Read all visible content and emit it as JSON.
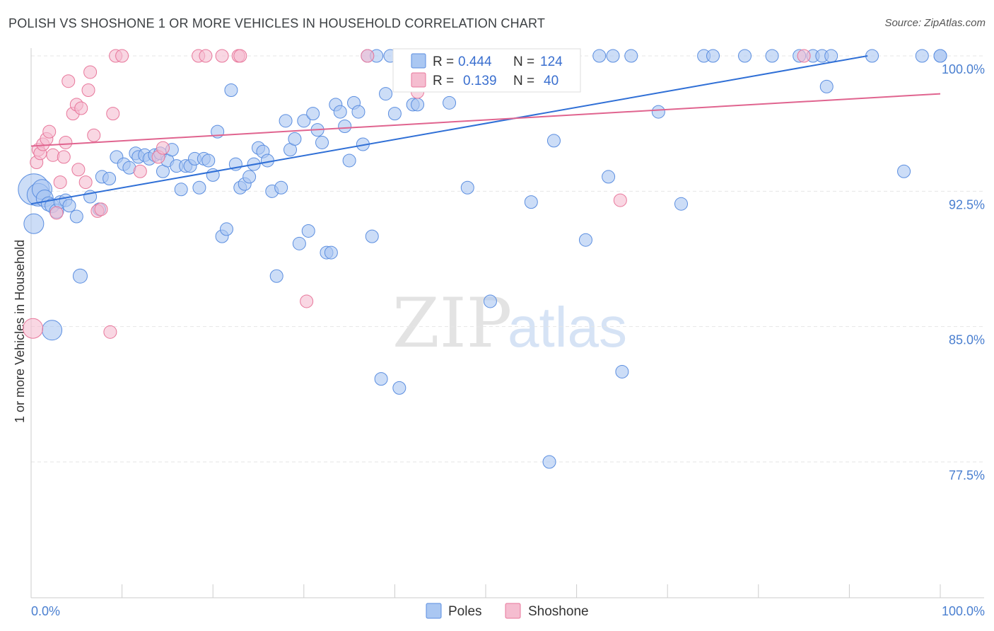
{
  "header": {
    "title": "POLISH VS SHOSHONE 1 OR MORE VEHICLES IN HOUSEHOLD CORRELATION CHART",
    "source": "Source: ZipAtlas.com"
  },
  "colors": {
    "poles": "#5b8ee0",
    "poles_fill": "#aac7f2",
    "shoshone": "#e8779b",
    "shoshone_fill": "#f5bdd0",
    "tick_label": "#4a7fd0"
  },
  "legend": {
    "poles": {
      "r_label": "R = ",
      "r_value": "0.444",
      "n_label": "N = ",
      "n_value": "124"
    },
    "shoshone": {
      "r_label": "R = ",
      "r_value": "0.139",
      "n_label": "N = ",
      "n_value": "40"
    }
  },
  "watermark": {
    "zip": "ZIP",
    "atlas": "atlas"
  },
  "chart_data": {
    "type": "scatter",
    "title": "POLISH VS SHOSHONE 1 OR MORE VEHICLES IN HOUSEHOLD CORRELATION CHART",
    "xlabel": "",
    "ylabel": "1 or more Vehicles in Household",
    "xlim": [
      0,
      100
    ],
    "ylim": [
      70.5,
      100.8
    ],
    "y_ticks": [
      77.5,
      85.0,
      92.5,
      100.0
    ],
    "y_tick_labels": [
      "77.5%",
      "85.0%",
      "92.5%",
      "100.0%"
    ],
    "x_tick_labels": [
      "0.0%",
      "100.0%"
    ],
    "series": [
      {
        "name": "Poles",
        "trend": [
          [
            0,
            91.8
          ],
          [
            92,
            100.0
          ]
        ],
        "points": [
          [
            0.3,
            92.6,
            22
          ],
          [
            0.8,
            92.3,
            16
          ],
          [
            1.2,
            92.6,
            14
          ],
          [
            1.5,
            92.1,
            12
          ],
          [
            1.9,
            91.8,
            10
          ],
          [
            2.3,
            91.7,
            10
          ],
          [
            2.8,
            91.4,
            10
          ],
          [
            3.2,
            91.9,
            9
          ],
          [
            3.8,
            92.0,
            9
          ],
          [
            4.2,
            91.7,
            9
          ],
          [
            5.0,
            91.1,
            9
          ],
          [
            0.3,
            90.7,
            14
          ],
          [
            2.3,
            84.8,
            14
          ],
          [
            5.4,
            87.8,
            10
          ],
          [
            6.5,
            92.2,
            9
          ],
          [
            7.5,
            91.5,
            9
          ],
          [
            7.8,
            93.3,
            9
          ],
          [
            8.6,
            93.2,
            9
          ],
          [
            9.4,
            94.4,
            9
          ],
          [
            10.2,
            94.0,
            9
          ],
          [
            10.8,
            93.8,
            9
          ],
          [
            11.5,
            94.6,
            9
          ],
          [
            11.8,
            94.4,
            9
          ],
          [
            12.5,
            94.5,
            9
          ],
          [
            13.0,
            94.3,
            9
          ],
          [
            13.6,
            94.5,
            9
          ],
          [
            14.2,
            94.6,
            9
          ],
          [
            14.5,
            93.6,
            9
          ],
          [
            15.0,
            94.2,
            9
          ],
          [
            15.5,
            94.8,
            9
          ],
          [
            16.0,
            93.9,
            9
          ],
          [
            16.5,
            92.6,
            9
          ],
          [
            17.0,
            93.9,
            9
          ],
          [
            17.5,
            93.9,
            9
          ],
          [
            18.0,
            94.3,
            9
          ],
          [
            18.5,
            92.7,
            9
          ],
          [
            19.0,
            94.3,
            9
          ],
          [
            19.5,
            94.2,
            9
          ],
          [
            20.0,
            93.4,
            9
          ],
          [
            20.5,
            95.8,
            9
          ],
          [
            21.0,
            90.0,
            9
          ],
          [
            21.5,
            90.4,
            9
          ],
          [
            22.0,
            98.1,
            9
          ],
          [
            22.5,
            94.0,
            9
          ],
          [
            23.0,
            92.7,
            9
          ],
          [
            23.5,
            92.9,
            9
          ],
          [
            24.0,
            93.3,
            9
          ],
          [
            24.5,
            94.0,
            9
          ],
          [
            25.0,
            94.9,
            9
          ],
          [
            25.5,
            94.7,
            9
          ],
          [
            26.0,
            94.2,
            9
          ],
          [
            26.5,
            92.5,
            9
          ],
          [
            27.0,
            87.8,
            9
          ],
          [
            27.5,
            92.7,
            9
          ],
          [
            28.0,
            96.4,
            9
          ],
          [
            28.5,
            94.8,
            9
          ],
          [
            29.0,
            95.4,
            9
          ],
          [
            29.5,
            89.6,
            9
          ],
          [
            30.0,
            96.4,
            9
          ],
          [
            30.5,
            90.3,
            9
          ],
          [
            31.0,
            96.8,
            9
          ],
          [
            31.5,
            95.9,
            9
          ],
          [
            32.0,
            95.2,
            9
          ],
          [
            32.5,
            89.1,
            9
          ],
          [
            33.0,
            89.1,
            9
          ],
          [
            33.5,
            97.3,
            9
          ],
          [
            34.0,
            96.9,
            9
          ],
          [
            34.5,
            96.1,
            9
          ],
          [
            35.0,
            94.2,
            9
          ],
          [
            35.5,
            97.4,
            9
          ],
          [
            36.0,
            96.9,
            9
          ],
          [
            36.5,
            95.1,
            9
          ],
          [
            37.0,
            100.0,
            9
          ],
          [
            37.5,
            90.0,
            9
          ],
          [
            38.0,
            100.0,
            9
          ],
          [
            38.5,
            82.1,
            9
          ],
          [
            39.0,
            97.9,
            9
          ],
          [
            39.5,
            100.0,
            9
          ],
          [
            40.0,
            96.8,
            9
          ],
          [
            40.5,
            81.6,
            9
          ],
          [
            41.0,
            99.6,
            9
          ],
          [
            41.5,
            100.0,
            9
          ],
          [
            42.0,
            97.3,
            9
          ],
          [
            42.5,
            97.3,
            9
          ],
          [
            44.0,
            99.6,
            9
          ],
          [
            45.0,
            100.0,
            9
          ],
          [
            46.0,
            97.4,
            9
          ],
          [
            47.0,
            100.0,
            9
          ],
          [
            48.0,
            92.7,
            9
          ],
          [
            48.5,
            100.0,
            9
          ],
          [
            49.5,
            99.6,
            9
          ],
          [
            50.5,
            86.4,
            9
          ],
          [
            51.5,
            100.0,
            9
          ],
          [
            52.5,
            100.0,
            9
          ],
          [
            53.0,
            100.0,
            9
          ],
          [
            54.0,
            100.0,
            9
          ],
          [
            55.0,
            91.9,
            9
          ],
          [
            56.0,
            100.0,
            9
          ],
          [
            57.0,
            77.5,
            9
          ],
          [
            57.5,
            95.3,
            9
          ],
          [
            58.5,
            100.0,
            9
          ],
          [
            59.5,
            100.0,
            9
          ],
          [
            61.0,
            89.8,
            9
          ],
          [
            62.5,
            100.0,
            9
          ],
          [
            63.5,
            93.3,
            9
          ],
          [
            64.0,
            100.0,
            9
          ],
          [
            65.0,
            82.5,
            9
          ],
          [
            66.0,
            100.0,
            9
          ],
          [
            69.0,
            96.9,
            9
          ],
          [
            71.5,
            91.8,
            9
          ],
          [
            74.0,
            100.0,
            9
          ],
          [
            75.0,
            100.0,
            9
          ],
          [
            78.5,
            100.0,
            9
          ],
          [
            81.5,
            100.0,
            9
          ],
          [
            84.5,
            100.0,
            9
          ],
          [
            86.0,
            100.0,
            9
          ],
          [
            87.0,
            100.0,
            9
          ],
          [
            87.5,
            98.3,
            9
          ],
          [
            88.0,
            100.0,
            9
          ],
          [
            92.5,
            100.0,
            9
          ],
          [
            96.0,
            93.6,
            9
          ],
          [
            98.0,
            100.0,
            9
          ],
          [
            100.0,
            100.0,
            9
          ],
          [
            100.0,
            100.0,
            9
          ]
        ]
      },
      {
        "name": "Shoshone",
        "trend": [
          [
            0,
            95.0
          ],
          [
            100,
            97.9
          ]
        ],
        "points": [
          [
            0.2,
            84.9,
            14
          ],
          [
            0.6,
            94.1,
            9
          ],
          [
            0.8,
            94.8,
            9
          ],
          [
            1.0,
            94.6,
            9
          ],
          [
            1.3,
            95.1,
            9
          ],
          [
            1.7,
            95.4,
            9
          ],
          [
            2.0,
            95.8,
            9
          ],
          [
            2.4,
            94.5,
            9
          ],
          [
            2.8,
            91.3,
            9
          ],
          [
            3.2,
            93.0,
            9
          ],
          [
            3.6,
            94.4,
            9
          ],
          [
            3.8,
            95.2,
            9
          ],
          [
            4.1,
            98.6,
            9
          ],
          [
            4.6,
            96.8,
            9
          ],
          [
            5.0,
            97.3,
            9
          ],
          [
            5.2,
            93.7,
            9
          ],
          [
            5.5,
            97.1,
            9
          ],
          [
            6.0,
            93.0,
            9
          ],
          [
            6.3,
            98.1,
            9
          ],
          [
            6.5,
            99.1,
            9
          ],
          [
            6.9,
            95.6,
            9
          ],
          [
            7.3,
            91.4,
            9
          ],
          [
            7.7,
            91.5,
            9
          ],
          [
            8.7,
            84.7,
            9
          ],
          [
            9.0,
            96.8,
            9
          ],
          [
            9.3,
            100.0,
            9
          ],
          [
            10.0,
            100.0,
            9
          ],
          [
            12.0,
            93.6,
            9
          ],
          [
            14.0,
            94.4,
            9
          ],
          [
            14.5,
            94.9,
            9
          ],
          [
            18.4,
            100.0,
            9
          ],
          [
            19.2,
            100.0,
            9
          ],
          [
            21.0,
            100.0,
            9
          ],
          [
            22.8,
            100.0,
            9
          ],
          [
            23.0,
            100.0,
            9
          ],
          [
            30.3,
            86.4,
            9
          ],
          [
            37.0,
            100.0,
            9
          ],
          [
            42.5,
            98.0,
            9
          ],
          [
            64.8,
            92.0,
            9
          ],
          [
            85.0,
            100.0,
            9
          ]
        ]
      }
    ],
    "legend_bottom": [
      "Poles",
      "Shoshone"
    ]
  }
}
